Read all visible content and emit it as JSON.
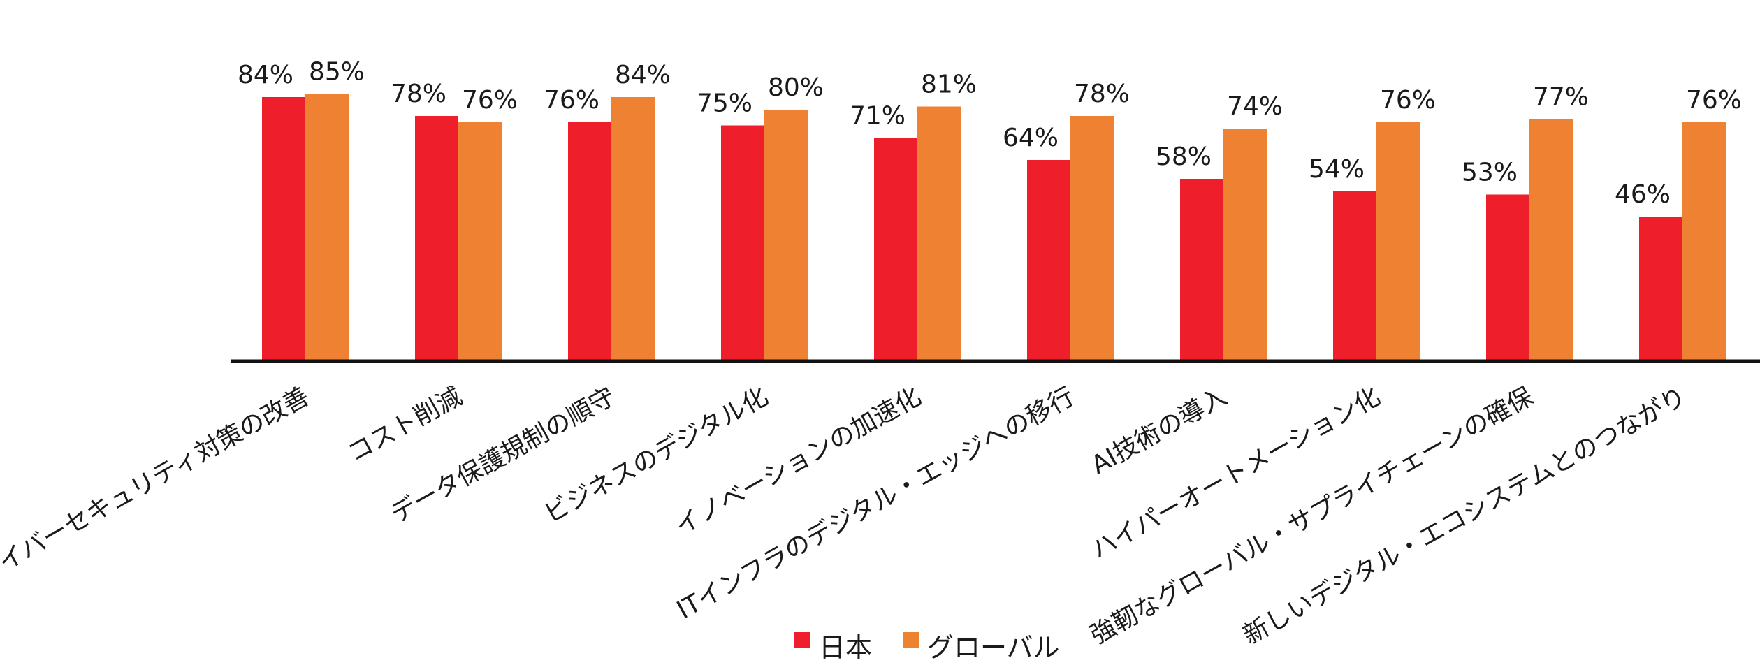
{
  "chart_data": {
    "type": "bar",
    "categories": [
      "サイバーセキュリティ対策の改善",
      "コスト削減",
      "データ保護規制の順守",
      "ビジネスのデジタル化",
      "イノベーションの加速化",
      "ITインフラのデジタル・エッジへの移行",
      "AI技術の導入",
      "ハイパーオートメーション化",
      "強靭なグローバル・サプライチェーンの確保",
      "新しいデジタル・エコシステムとのつながり"
    ],
    "series": [
      {
        "name": "日本",
        "color": "#ee1f2a",
        "values": [
          84,
          78,
          76,
          75,
          71,
          64,
          58,
          54,
          53,
          46
        ]
      },
      {
        "name": "グローバル",
        "color": "#ef8133",
        "values": [
          85,
          76,
          84,
          80,
          81,
          78,
          74,
          76,
          77,
          76
        ]
      }
    ],
    "value_suffix": "%",
    "ylim": [
      0,
      100
    ],
    "grid": false,
    "legend": "bottom-center"
  }
}
